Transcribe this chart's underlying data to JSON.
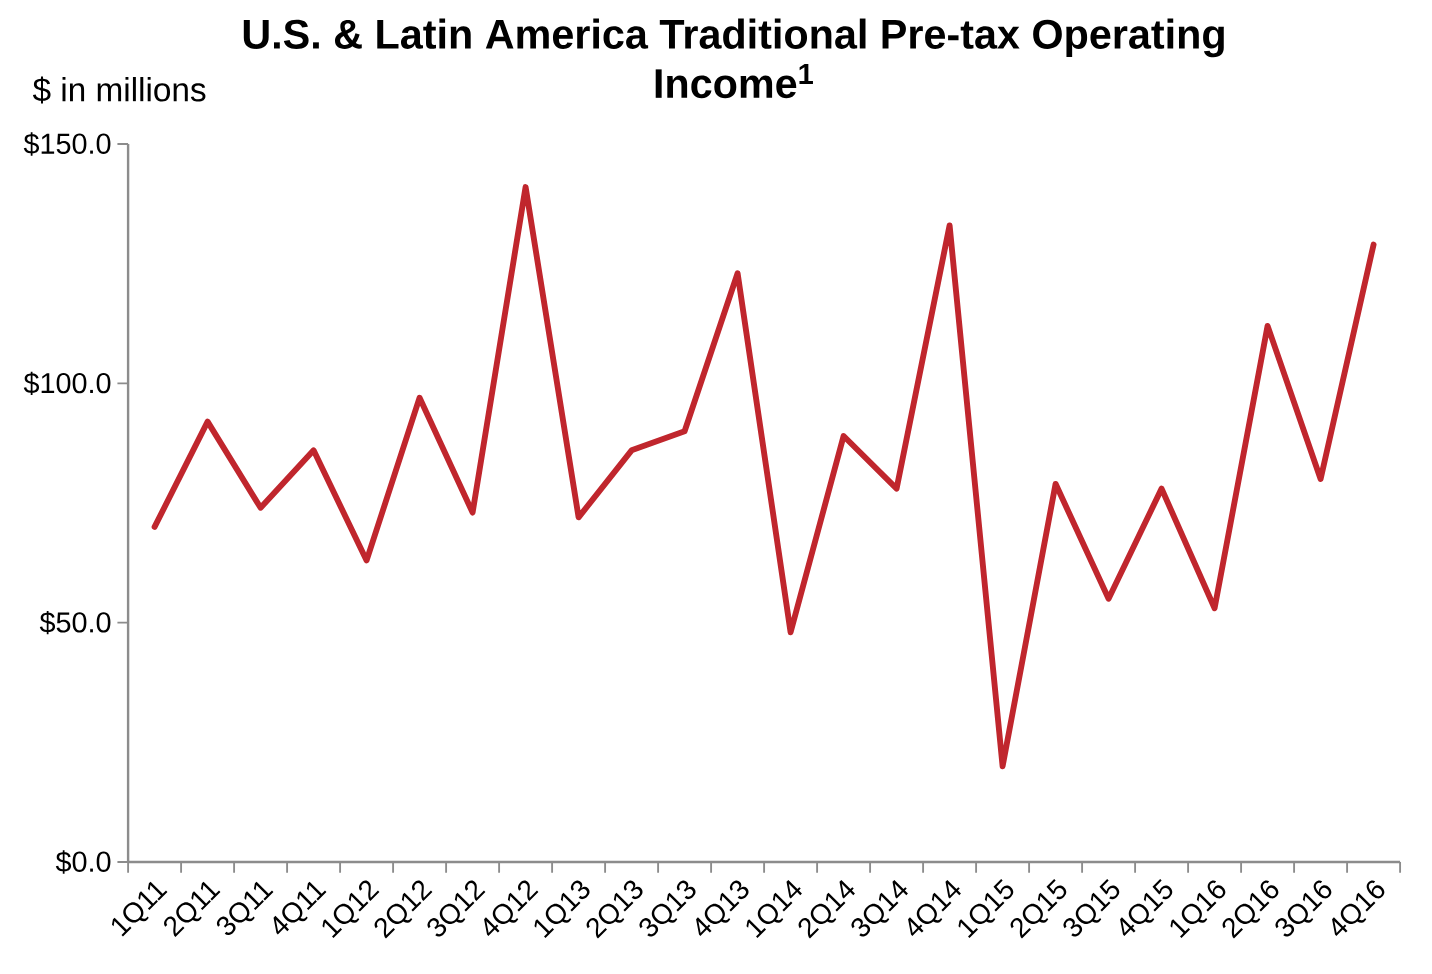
{
  "chart_data": {
    "type": "line",
    "title": "U.S. & Latin America Traditional Pre-tax Operating Income$^{1}$",
    "ylabel": "$ in millions",
    "categories": [
      "1Q11",
      "2Q11",
      "3Q11",
      "4Q11",
      "1Q12",
      "2Q12",
      "3Q12",
      "4Q12",
      "1Q13",
      "2Q13",
      "3Q13",
      "4Q13",
      "1Q14",
      "2Q14",
      "3Q14",
      "4Q14",
      "1Q15",
      "2Q15",
      "3Q15",
      "4Q15",
      "1Q16",
      "2Q16",
      "3Q16",
      "4Q16"
    ],
    "values": [
      70,
      92,
      74,
      86,
      63,
      97,
      73,
      141,
      72,
      86,
      90,
      123,
      48,
      89,
      78,
      133,
      20,
      79,
      55,
      78,
      53,
      112,
      80,
      129
    ],
    "color": "#c0262d",
    "ylim": [
      0,
      150
    ],
    "yticks": [
      {
        "value": 0,
        "label": "$0.0"
      },
      {
        "value": 50,
        "label": "$50.0"
      },
      {
        "value": 100,
        "label": "$100.0"
      },
      {
        "value": 150,
        "label": "$150.0"
      }
    ]
  }
}
